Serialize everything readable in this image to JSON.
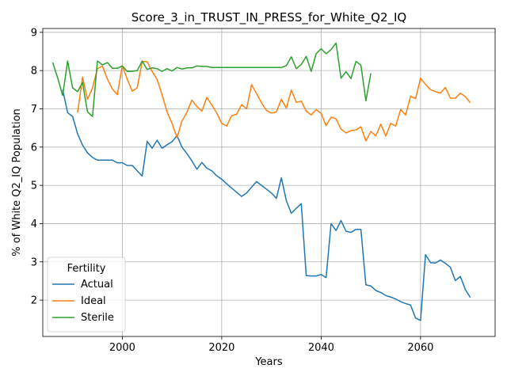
{
  "chart_data": {
    "type": "line",
    "title": "Score_3_in_TRUST_IN_PRESS_for_White_Q2_IQ",
    "xlabel": "Years",
    "ylabel": "% of White Q2_IQ Population",
    "xlim": [
      1984,
      2075
    ],
    "ylim": [
      1.05,
      9.1
    ],
    "xticks": [
      2000,
      2020,
      2040,
      2060
    ],
    "yticks": [
      2,
      3,
      4,
      5,
      6,
      7,
      8,
      9
    ],
    "grid": true,
    "legend": {
      "title": "Fertility",
      "placement": "lower-left"
    },
    "series": [
      {
        "name": "Actual",
        "color": "#1f77b4",
        "points": [
          [
            1988,
            7.5
          ],
          [
            1989,
            6.9
          ],
          [
            1990,
            6.8
          ],
          [
            1991,
            6.35
          ],
          [
            1992,
            6.05
          ],
          [
            1993,
            5.85
          ],
          [
            1994,
            5.73
          ],
          [
            1995,
            5.66
          ],
          [
            1996,
            5.66
          ],
          [
            1997,
            5.66
          ],
          [
            1998,
            5.66
          ],
          [
            1999,
            5.59
          ],
          [
            2000,
            5.59
          ],
          [
            2001,
            5.52
          ],
          [
            2002,
            5.52
          ],
          [
            2003,
            5.38
          ],
          [
            2004,
            5.24
          ],
          [
            2005,
            6.15
          ],
          [
            2006,
            5.97
          ],
          [
            2007,
            6.18
          ],
          [
            2008,
            5.97
          ],
          [
            2009,
            6.06
          ],
          [
            2010,
            6.14
          ],
          [
            2011,
            6.3
          ],
          [
            2012,
            6.0
          ],
          [
            2013,
            5.83
          ],
          [
            2014,
            5.64
          ],
          [
            2015,
            5.42
          ],
          [
            2016,
            5.6
          ],
          [
            2017,
            5.45
          ],
          [
            2018,
            5.38
          ],
          [
            2019,
            5.25
          ],
          [
            2020,
            5.16
          ],
          [
            2021,
            5.04
          ],
          [
            2022,
            4.93
          ],
          [
            2023,
            4.82
          ],
          [
            2024,
            4.71
          ],
          [
            2025,
            4.8
          ],
          [
            2026,
            4.95
          ],
          [
            2027,
            5.1
          ],
          [
            2028,
            5.0
          ],
          [
            2029,
            4.9
          ],
          [
            2030,
            4.8
          ],
          [
            2031,
            4.66
          ],
          [
            2032,
            5.2
          ],
          [
            2033,
            4.6
          ],
          [
            2034,
            4.27
          ],
          [
            2035,
            4.4
          ],
          [
            2036,
            4.52
          ],
          [
            2037,
            2.64
          ],
          [
            2038,
            2.63
          ],
          [
            2039,
            2.63
          ],
          [
            2040,
            2.67
          ],
          [
            2041,
            2.59
          ],
          [
            2042,
            4.0
          ],
          [
            2043,
            3.82
          ],
          [
            2044,
            4.08
          ],
          [
            2045,
            3.8
          ],
          [
            2046,
            3.77
          ],
          [
            2047,
            3.85
          ],
          [
            2048,
            3.85
          ],
          [
            2049,
            2.4
          ],
          [
            2050,
            2.37
          ],
          [
            2051,
            2.25
          ],
          [
            2052,
            2.2
          ],
          [
            2053,
            2.12
          ],
          [
            2054,
            2.08
          ],
          [
            2055,
            2.03
          ],
          [
            2056,
            1.96
          ],
          [
            2057,
            1.91
          ],
          [
            2058,
            1.87
          ],
          [
            2059,
            1.53
          ],
          [
            2060,
            1.47
          ],
          [
            2061,
            3.19
          ],
          [
            2062,
            2.98
          ],
          [
            2063,
            2.97
          ],
          [
            2064,
            3.05
          ],
          [
            2065,
            2.96
          ],
          [
            2066,
            2.86
          ],
          [
            2067,
            2.51
          ],
          [
            2068,
            2.62
          ],
          [
            2069,
            2.28
          ],
          [
            2070,
            2.07
          ]
        ]
      },
      {
        "name": "Ideal",
        "color": "#ff7f0e",
        "points": [
          [
            1991,
            6.9
          ],
          [
            1992,
            7.83
          ],
          [
            1993,
            7.25
          ],
          [
            1994,
            7.55
          ],
          [
            1995,
            8.05
          ],
          [
            1996,
            8.12
          ],
          [
            1997,
            7.78
          ],
          [
            1998,
            7.52
          ],
          [
            1999,
            7.37
          ],
          [
            2000,
            8.13
          ],
          [
            2001,
            7.77
          ],
          [
            2002,
            7.46
          ],
          [
            2003,
            7.55
          ],
          [
            2004,
            8.24
          ],
          [
            2005,
            8.23
          ],
          [
            2006,
            7.98
          ],
          [
            2007,
            7.77
          ],
          [
            2008,
            7.37
          ],
          [
            2009,
            6.92
          ],
          [
            2010,
            6.62
          ],
          [
            2011,
            6.25
          ],
          [
            2012,
            6.68
          ],
          [
            2013,
            6.91
          ],
          [
            2014,
            7.23
          ],
          [
            2015,
            7.06
          ],
          [
            2016,
            6.94
          ],
          [
            2017,
            7.3
          ],
          [
            2018,
            7.1
          ],
          [
            2019,
            6.89
          ],
          [
            2020,
            6.62
          ],
          [
            2021,
            6.55
          ],
          [
            2022,
            6.82
          ],
          [
            2023,
            6.86
          ],
          [
            2024,
            7.11
          ],
          [
            2025,
            7.0
          ],
          [
            2026,
            7.63
          ],
          [
            2027,
            7.4
          ],
          [
            2028,
            7.16
          ],
          [
            2029,
            6.96
          ],
          [
            2030,
            6.89
          ],
          [
            2031,
            6.92
          ],
          [
            2032,
            7.25
          ],
          [
            2033,
            7.02
          ],
          [
            2034,
            7.49
          ],
          [
            2035,
            7.17
          ],
          [
            2036,
            7.2
          ],
          [
            2037,
            6.94
          ],
          [
            2038,
            6.84
          ],
          [
            2039,
            6.98
          ],
          [
            2040,
            6.88
          ],
          [
            2041,
            6.56
          ],
          [
            2042,
            6.78
          ],
          [
            2043,
            6.74
          ],
          [
            2044,
            6.47
          ],
          [
            2045,
            6.37
          ],
          [
            2046,
            6.43
          ],
          [
            2047,
            6.45
          ],
          [
            2048,
            6.53
          ],
          [
            2049,
            6.16
          ],
          [
            2050,
            6.41
          ],
          [
            2051,
            6.29
          ],
          [
            2052,
            6.6
          ],
          [
            2053,
            6.29
          ],
          [
            2054,
            6.62
          ],
          [
            2055,
            6.55
          ],
          [
            2056,
            6.98
          ],
          [
            2057,
            6.84
          ],
          [
            2058,
            7.33
          ],
          [
            2059,
            7.27
          ],
          [
            2060,
            7.8
          ],
          [
            2061,
            7.64
          ],
          [
            2062,
            7.5
          ],
          [
            2063,
            7.45
          ],
          [
            2064,
            7.41
          ],
          [
            2065,
            7.56
          ],
          [
            2066,
            7.28
          ],
          [
            2067,
            7.28
          ],
          [
            2068,
            7.41
          ],
          [
            2069,
            7.32
          ],
          [
            2070,
            7.16
          ]
        ]
      },
      {
        "name": "Sterile",
        "color": "#2ca02c",
        "points": [
          [
            1986,
            8.21
          ],
          [
            1987,
            7.81
          ],
          [
            1988,
            7.35
          ],
          [
            1989,
            8.25
          ],
          [
            1990,
            7.55
          ],
          [
            1991,
            7.45
          ],
          [
            1992,
            7.69
          ],
          [
            1993,
            6.92
          ],
          [
            1994,
            6.8
          ],
          [
            1995,
            8.25
          ],
          [
            1996,
            8.15
          ],
          [
            1997,
            8.21
          ],
          [
            1998,
            8.06
          ],
          [
            1999,
            8.06
          ],
          [
            2000,
            8.12
          ],
          [
            2001,
            7.98
          ],
          [
            2002,
            7.98
          ],
          [
            2003,
            8.0
          ],
          [
            2004,
            8.25
          ],
          [
            2005,
            8.03
          ],
          [
            2006,
            8.07
          ],
          [
            2007,
            8.05
          ],
          [
            2008,
            7.98
          ],
          [
            2009,
            8.05
          ],
          [
            2010,
            7.99
          ],
          [
            2011,
            8.08
          ],
          [
            2012,
            8.04
          ],
          [
            2013,
            8.07
          ],
          [
            2014,
            8.07
          ],
          [
            2015,
            8.12
          ],
          [
            2016,
            8.11
          ],
          [
            2017,
            8.11
          ],
          [
            2018,
            8.08
          ],
          [
            2019,
            8.08
          ],
          [
            2020,
            8.08
          ],
          [
            2021,
            8.08
          ],
          [
            2022,
            8.08
          ],
          [
            2023,
            8.08
          ],
          [
            2024,
            8.08
          ],
          [
            2025,
            8.08
          ],
          [
            2026,
            8.08
          ],
          [
            2027,
            8.08
          ],
          [
            2028,
            8.08
          ],
          [
            2029,
            8.08
          ],
          [
            2030,
            8.08
          ],
          [
            2031,
            8.08
          ],
          [
            2032,
            8.08
          ],
          [
            2033,
            8.13
          ],
          [
            2034,
            8.36
          ],
          [
            2035,
            8.05
          ],
          [
            2036,
            8.16
          ],
          [
            2037,
            8.37
          ],
          [
            2038,
            7.98
          ],
          [
            2039,
            8.44
          ],
          [
            2040,
            8.57
          ],
          [
            2041,
            8.44
          ],
          [
            2042,
            8.55
          ],
          [
            2043,
            8.72
          ],
          [
            2044,
            7.8
          ],
          [
            2045,
            7.97
          ],
          [
            2046,
            7.79
          ],
          [
            2047,
            8.24
          ],
          [
            2048,
            8.14
          ],
          [
            2049,
            7.21
          ],
          [
            2050,
            7.93
          ]
        ]
      }
    ]
  }
}
